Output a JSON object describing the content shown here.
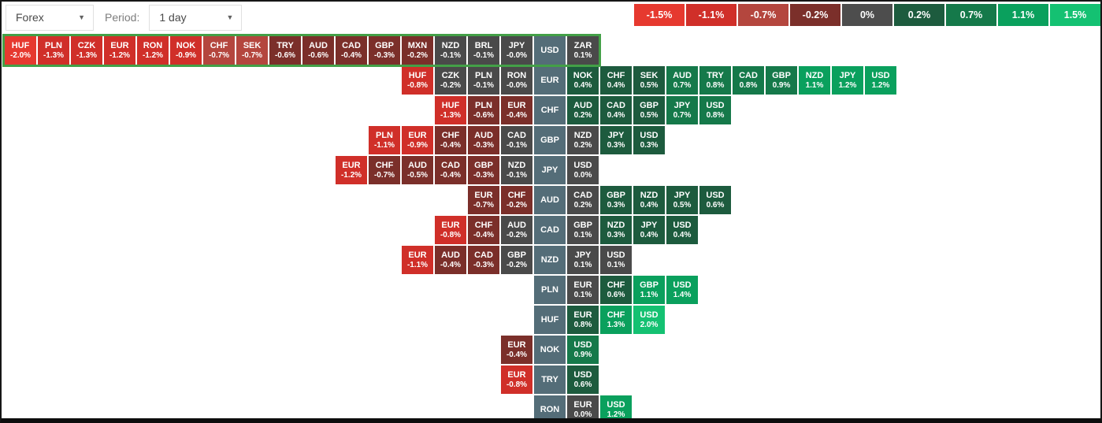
{
  "toolbar": {
    "market_select": {
      "value": "Forex"
    },
    "period_label": "Period:",
    "period_select": {
      "value": "1 day"
    }
  },
  "legend": [
    {
      "label": "-1.5%",
      "color": "#e6392f"
    },
    {
      "label": "-1.1%",
      "color": "#d02f29"
    },
    {
      "label": "-0.7%",
      "color": "#b4463e"
    },
    {
      "label": "-0.2%",
      "color": "#7b2f2a"
    },
    {
      "label": "0%",
      "color": "#4d4d4d"
    },
    {
      "label": "0.2%",
      "color": "#1d5b3e"
    },
    {
      "label": "0.7%",
      "color": "#15794a"
    },
    {
      "label": "1.1%",
      "color": "#0aa05d"
    },
    {
      "label": "1.5%",
      "color": "#14c172"
    }
  ],
  "heatmap": {
    "palette": {
      "r5": "#e6392f",
      "r4": "#d02f29",
      "r3": "#b4463e",
      "r2": "#7b2f2a",
      "n": "#4a4a4a",
      "g2": "#1d5b3e",
      "g3": "#15794a",
      "g4": "#0aa05d",
      "g5": "#14c172",
      "base": "#546d78",
      "selection_border": "#43a047"
    },
    "base_column_index": 16,
    "rows": [
      {
        "base": "USD",
        "selected": true,
        "cells": [
          {
            "code": "HUF",
            "value": "-2.0%"
          },
          {
            "code": "PLN",
            "value": "-1.3%"
          },
          {
            "code": "CZK",
            "value": "-1.3%"
          },
          {
            "code": "EUR",
            "value": "-1.2%"
          },
          {
            "code": "RON",
            "value": "-1.2%"
          },
          {
            "code": "NOK",
            "value": "-0.9%"
          },
          {
            "code": "CHF",
            "value": "-0.7%"
          },
          {
            "code": "SEK",
            "value": "-0.7%"
          },
          {
            "code": "TRY",
            "value": "-0.6%"
          },
          {
            "code": "AUD",
            "value": "-0.6%"
          },
          {
            "code": "CAD",
            "value": "-0.4%"
          },
          {
            "code": "GBP",
            "value": "-0.3%"
          },
          {
            "code": "MXN",
            "value": "-0.2%",
            "tone": "r2"
          },
          {
            "code": "NZD",
            "value": "-0.1%"
          },
          {
            "code": "BRL",
            "value": "-0.1%"
          },
          {
            "code": "JPY",
            "value": "-0.0%"
          },
          {
            "code": "USD",
            "base": true
          },
          {
            "code": "ZAR",
            "value": "0.1%"
          }
        ]
      },
      {
        "base": "EUR",
        "cells": [
          {
            "code": "HUF",
            "value": "-0.8%"
          },
          {
            "code": "CZK",
            "value": "-0.2%"
          },
          {
            "code": "PLN",
            "value": "-0.1%"
          },
          {
            "code": "RON",
            "value": "-0.0%"
          },
          {
            "code": "EUR",
            "base": true
          },
          {
            "code": "NOK",
            "value": "0.4%"
          },
          {
            "code": "CHF",
            "value": "0.4%"
          },
          {
            "code": "SEK",
            "value": "0.5%"
          },
          {
            "code": "AUD",
            "value": "0.7%"
          },
          {
            "code": "TRY",
            "value": "0.8%"
          },
          {
            "code": "CAD",
            "value": "0.8%"
          },
          {
            "code": "GBP",
            "value": "0.9%"
          },
          {
            "code": "NZD",
            "value": "1.1%"
          },
          {
            "code": "JPY",
            "value": "1.2%"
          },
          {
            "code": "USD",
            "value": "1.2%"
          }
        ]
      },
      {
        "base": "CHF",
        "cells": [
          {
            "code": "HUF",
            "value": "-1.3%"
          },
          {
            "code": "PLN",
            "value": "-0.6%"
          },
          {
            "code": "EUR",
            "value": "-0.4%"
          },
          {
            "code": "CHF",
            "base": true
          },
          {
            "code": "AUD",
            "value": "0.2%",
            "tone": "g2"
          },
          {
            "code": "CAD",
            "value": "0.4%"
          },
          {
            "code": "GBP",
            "value": "0.5%"
          },
          {
            "code": "JPY",
            "value": "0.7%"
          },
          {
            "code": "USD",
            "value": "0.8%"
          }
        ]
      },
      {
        "base": "GBP",
        "cells": [
          {
            "code": "PLN",
            "value": "-1.1%"
          },
          {
            "code": "EUR",
            "value": "-0.9%"
          },
          {
            "code": "CHF",
            "value": "-0.4%"
          },
          {
            "code": "AUD",
            "value": "-0.3%"
          },
          {
            "code": "CAD",
            "value": "-0.1%"
          },
          {
            "code": "GBP",
            "base": true
          },
          {
            "code": "NZD",
            "value": "0.2%"
          },
          {
            "code": "JPY",
            "value": "0.3%"
          },
          {
            "code": "USD",
            "value": "0.3%"
          }
        ]
      },
      {
        "base": "JPY",
        "cells": [
          {
            "code": "EUR",
            "value": "-1.2%"
          },
          {
            "code": "CHF",
            "value": "-0.7%",
            "tone": "r2"
          },
          {
            "code": "AUD",
            "value": "-0.5%"
          },
          {
            "code": "CAD",
            "value": "-0.4%"
          },
          {
            "code": "GBP",
            "value": "-0.3%"
          },
          {
            "code": "NZD",
            "value": "-0.1%"
          },
          {
            "code": "JPY",
            "base": true
          },
          {
            "code": "USD",
            "value": "0.0%"
          }
        ]
      },
      {
        "base": "AUD",
        "cells": [
          {
            "code": "EUR",
            "value": "-0.7%",
            "tone": "r2"
          },
          {
            "code": "CHF",
            "value": "-0.2%",
            "tone": "r2"
          },
          {
            "code": "AUD",
            "base": true
          },
          {
            "code": "CAD",
            "value": "0.2%"
          },
          {
            "code": "GBP",
            "value": "0.3%"
          },
          {
            "code": "NZD",
            "value": "0.4%"
          },
          {
            "code": "JPY",
            "value": "0.5%"
          },
          {
            "code": "USD",
            "value": "0.6%"
          }
        ]
      },
      {
        "base": "CAD",
        "cells": [
          {
            "code": "EUR",
            "value": "-0.8%"
          },
          {
            "code": "CHF",
            "value": "-0.4%"
          },
          {
            "code": "AUD",
            "value": "-0.2%"
          },
          {
            "code": "CAD",
            "base": true
          },
          {
            "code": "GBP",
            "value": "0.1%"
          },
          {
            "code": "NZD",
            "value": "0.3%"
          },
          {
            "code": "JPY",
            "value": "0.4%"
          },
          {
            "code": "USD",
            "value": "0.4%"
          }
        ]
      },
      {
        "base": "NZD",
        "cells": [
          {
            "code": "EUR",
            "value": "-1.1%"
          },
          {
            "code": "AUD",
            "value": "-0.4%"
          },
          {
            "code": "CAD",
            "value": "-0.3%"
          },
          {
            "code": "GBP",
            "value": "-0.2%"
          },
          {
            "code": "NZD",
            "base": true
          },
          {
            "code": "JPY",
            "value": "0.1%"
          },
          {
            "code": "USD",
            "value": "0.1%"
          }
        ]
      },
      {
        "base": "PLN",
        "cells": [
          {
            "code": "PLN",
            "base": true
          },
          {
            "code": "EUR",
            "value": "0.1%"
          },
          {
            "code": "CHF",
            "value": "0.6%"
          },
          {
            "code": "GBP",
            "value": "1.1%"
          },
          {
            "code": "USD",
            "value": "1.4%"
          }
        ]
      },
      {
        "base": "HUF",
        "cells": [
          {
            "code": "HUF",
            "base": true
          },
          {
            "code": "EUR",
            "value": "0.8%",
            "tone": "g2"
          },
          {
            "code": "CHF",
            "value": "1.3%"
          },
          {
            "code": "USD",
            "value": "2.0%"
          }
        ]
      },
      {
        "base": "NOK",
        "cells": [
          {
            "code": "EUR",
            "value": "-0.4%"
          },
          {
            "code": "NOK",
            "base": true
          },
          {
            "code": "USD",
            "value": "0.9%"
          }
        ]
      },
      {
        "base": "TRY",
        "cells": [
          {
            "code": "EUR",
            "value": "-0.8%"
          },
          {
            "code": "TRY",
            "base": true
          },
          {
            "code": "USD",
            "value": "0.6%"
          }
        ]
      },
      {
        "base": "RON",
        "cells": [
          {
            "code": "RON",
            "base": true
          },
          {
            "code": "EUR",
            "value": "0.0%"
          },
          {
            "code": "USD",
            "value": "1.2%"
          }
        ]
      }
    ]
  }
}
